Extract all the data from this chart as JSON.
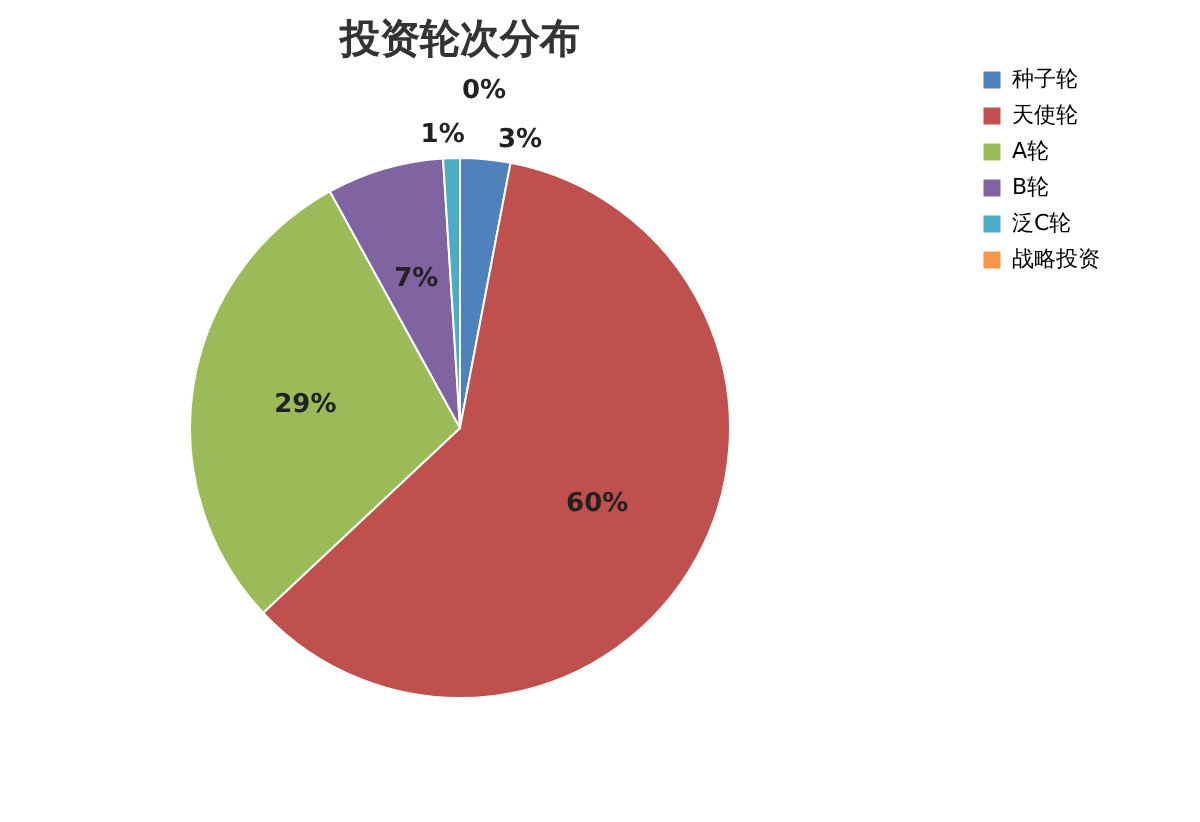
{
  "chart_data": {
    "type": "pie",
    "title": "投资轮次分布",
    "categories": [
      "种子轮",
      "天使轮",
      "A轮",
      "B轮",
      "泛C轮",
      "战略投资"
    ],
    "values": [
      3,
      60,
      29,
      7,
      1,
      0
    ],
    "colors": [
      "#4f81bd",
      "#c0504d",
      "#9bbb59",
      "#8064a2",
      "#4bacc6",
      "#f79646"
    ],
    "value_labels": [
      "3%",
      "60%",
      "29%",
      "7%",
      "1%",
      "0%"
    ],
    "legend": "right"
  }
}
